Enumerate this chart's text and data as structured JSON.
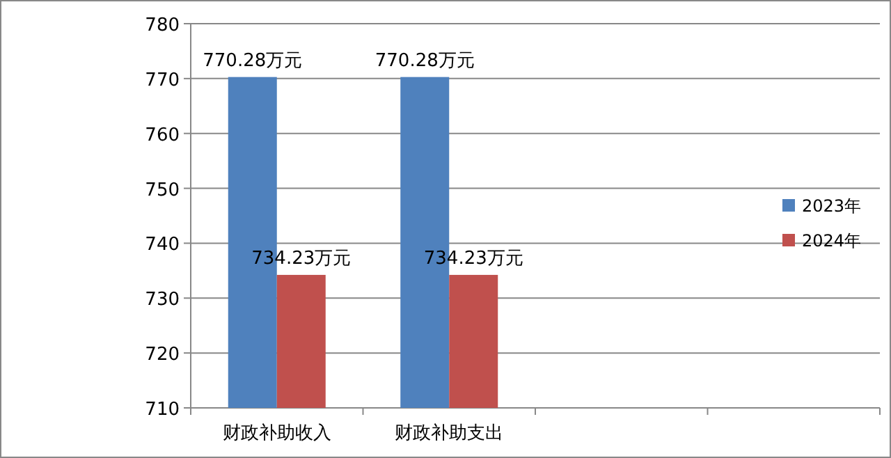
{
  "chart_data": {
    "type": "bar",
    "categories": [
      "财政补助收入",
      "财政补助支出",
      null,
      null
    ],
    "series": [
      {
        "name": "2023年",
        "color": "#4f81bd",
        "values": [
          770.28,
          770.28,
          null,
          null
        ],
        "value_labels": [
          "770.28万元",
          "770.28万元",
          null,
          null
        ]
      },
      {
        "name": "2024年",
        "color": "#c0504d",
        "values": [
          734.23,
          734.23,
          null,
          null
        ],
        "value_labels": [
          "734.23万元",
          "734.23万元",
          null,
          null
        ]
      }
    ],
    "ylim": [
      710,
      780
    ],
    "yticks": [
      710,
      720,
      730,
      740,
      750,
      760,
      770,
      780
    ],
    "grid": "y",
    "legend": "right"
  }
}
